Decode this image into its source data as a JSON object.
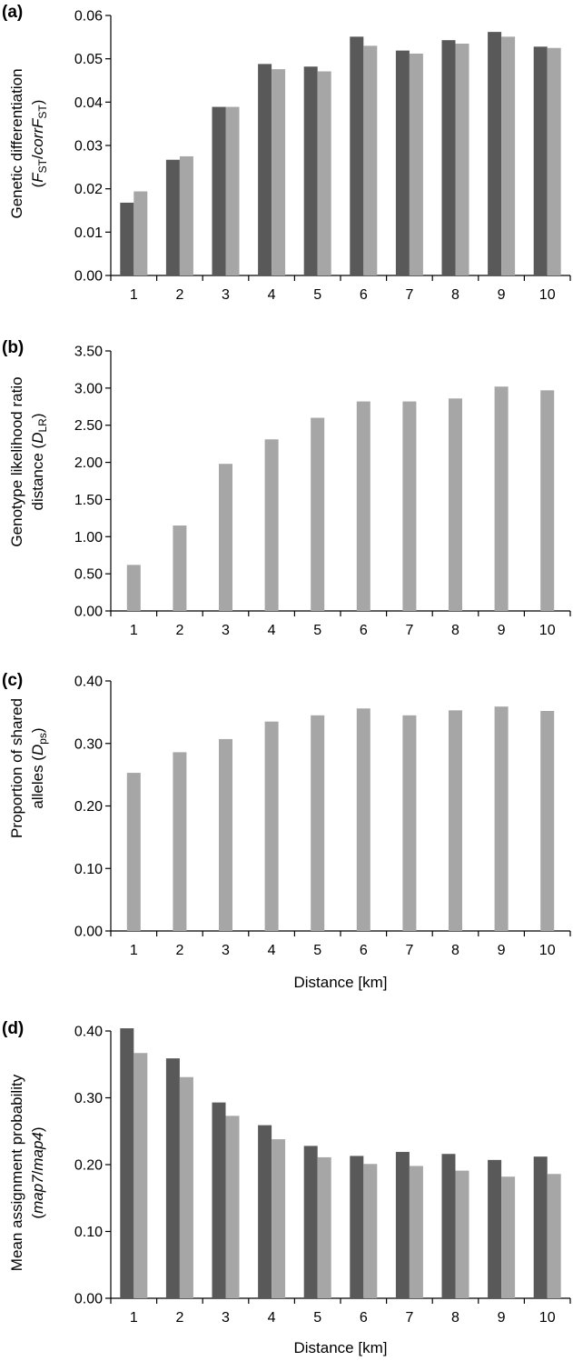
{
  "colors": {
    "series_a": "#595959",
    "series_b": "#a6a6a6",
    "axis": "#000000",
    "background": "#ffffff"
  },
  "chart_data": [
    {
      "type": "bar",
      "panel": "(a)",
      "ylabel_line1": "Genetic differentiation",
      "ylabel_line2": {
        "open": "(",
        "f1": "F",
        "sub1": "ST",
        "sep": "/",
        "corr": "corr",
        "f2": "F",
        "sub2": "ST",
        "close": ")"
      },
      "xlabel": "",
      "categories": [
        "1",
        "2",
        "3",
        "4",
        "5",
        "6",
        "7",
        "8",
        "9",
        "10"
      ],
      "yticks": [
        "0.00",
        "0.01",
        "0.02",
        "0.03",
        "0.04",
        "0.05",
        "0.06"
      ],
      "ylim": [
        0,
        0.06
      ],
      "series": [
        {
          "values": [
            0.0168,
            0.0267,
            0.0389,
            0.0488,
            0.0482,
            0.0551,
            0.0519,
            0.0543,
            0.0562,
            0.0528
          ]
        },
        {
          "values": [
            0.0194,
            0.0275,
            0.0389,
            0.0476,
            0.0471,
            0.053,
            0.0512,
            0.0535,
            0.0551,
            0.0525
          ]
        }
      ],
      "grid": false
    },
    {
      "type": "bar",
      "panel": "(b)",
      "ylabel_line1": "Genotype likelihood ratio",
      "ylabel_line2": {
        "text": "distance (",
        "d": "D",
        "sub": "LR",
        "close": ")"
      },
      "xlabel": "",
      "categories": [
        "1",
        "2",
        "3",
        "4",
        "5",
        "6",
        "7",
        "8",
        "9",
        "10"
      ],
      "yticks": [
        "0.00",
        "0.50",
        "1.00",
        "1.50",
        "2.00",
        "2.50",
        "3.00",
        "3.50"
      ],
      "ylim": [
        0,
        3.5
      ],
      "series": [
        {
          "values": [
            0.62,
            1.15,
            1.98,
            2.31,
            2.6,
            2.82,
            2.82,
            2.86,
            3.02,
            2.97
          ]
        }
      ],
      "grid": false
    },
    {
      "type": "bar",
      "panel": "(c)",
      "ylabel_line1": "Proportion of shared",
      "ylabel_line2": {
        "text": "alleles  (",
        "d": "D",
        "sub": "ps",
        "close": ")"
      },
      "xlabel": "Distance [km]",
      "categories": [
        "1",
        "2",
        "3",
        "4",
        "5",
        "6",
        "7",
        "8",
        "9",
        "10"
      ],
      "yticks": [
        "0.00",
        "0.10",
        "0.20",
        "0.30",
        "0.40"
      ],
      "ylim": [
        0,
        0.4
      ],
      "series": [
        {
          "values": [
            0.253,
            0.286,
            0.307,
            0.335,
            0.345,
            0.356,
            0.345,
            0.353,
            0.359,
            0.352
          ]
        }
      ],
      "grid": false
    },
    {
      "type": "bar",
      "panel": "(d)",
      "ylabel_line1": "Mean assignment probability",
      "ylabel_line2": {
        "open": "(",
        "m1": "map7",
        "sep": "/",
        "m2": "map4",
        "close": ")"
      },
      "xlabel": "Distance [km]",
      "categories": [
        "1",
        "2",
        "3",
        "4",
        "5",
        "6",
        "7",
        "8",
        "9",
        "10"
      ],
      "yticks": [
        "0.00",
        "0.10",
        "0.20",
        "0.30",
        "0.40"
      ],
      "ylim": [
        0,
        0.4
      ],
      "series": [
        {
          "values": [
            0.404,
            0.359,
            0.293,
            0.259,
            0.228,
            0.213,
            0.219,
            0.216,
            0.207,
            0.212
          ]
        },
        {
          "values": [
            0.367,
            0.331,
            0.273,
            0.238,
            0.211,
            0.201,
            0.198,
            0.191,
            0.182,
            0.186
          ]
        }
      ],
      "grid": false
    }
  ]
}
